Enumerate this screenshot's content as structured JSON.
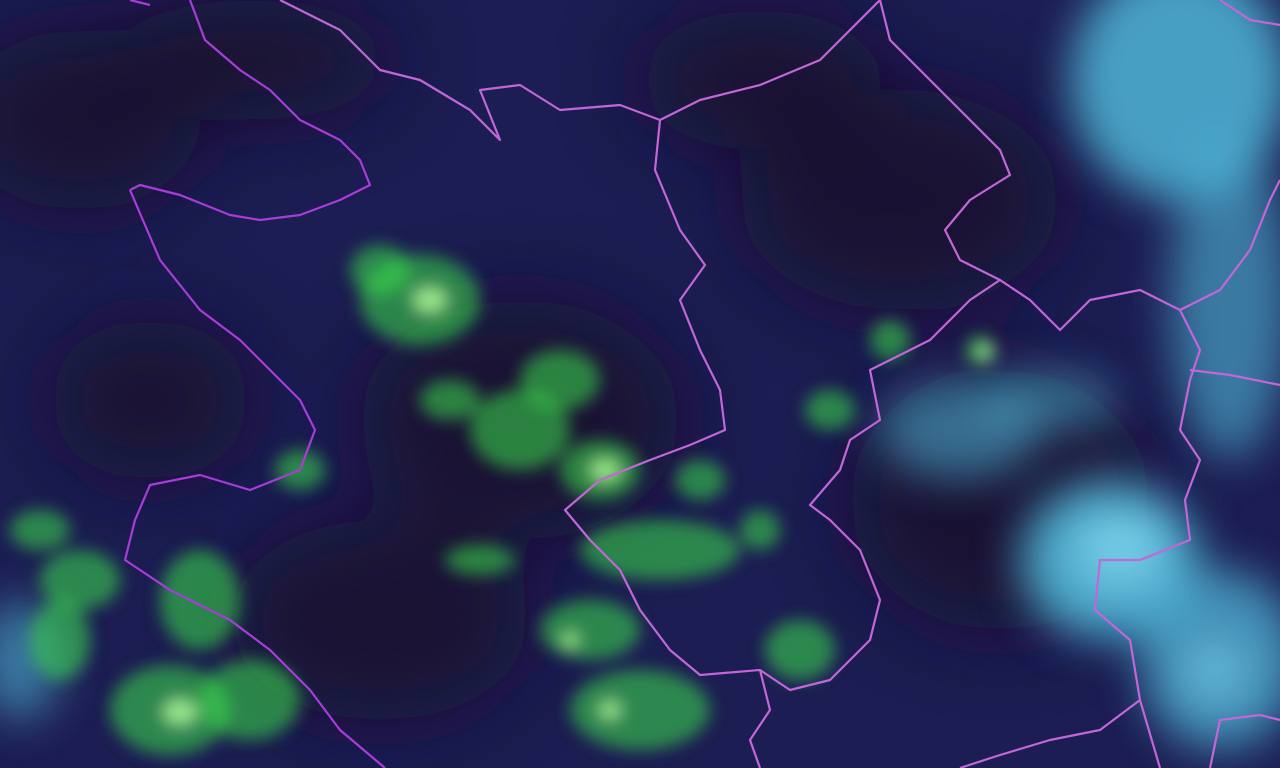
{
  "map": {
    "kind": "satellite-imagery",
    "colors": {
      "background": "#1c1d52",
      "dark_patch": "#15102a",
      "vegetation_green": "#3de04a",
      "bright_green": "#b4ff9a",
      "cloud_cyan": "#4fb7d8",
      "cloud_light": "#7fd8f0",
      "border": "#c266d8",
      "border_bold": "#a83cd8"
    }
  }
}
